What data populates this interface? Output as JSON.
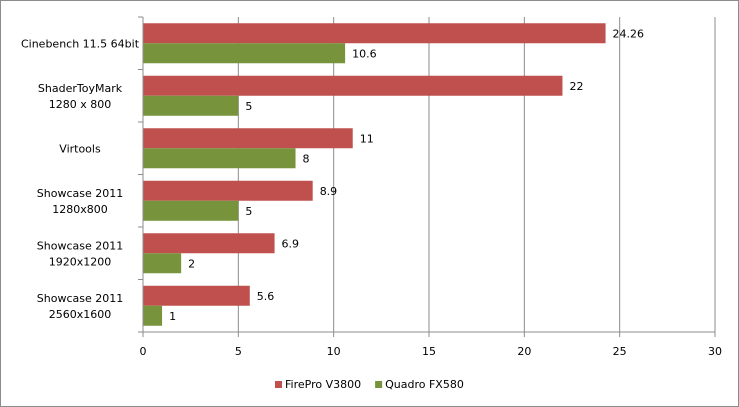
{
  "chart_data": {
    "type": "bar",
    "orientation": "horizontal",
    "categories": [
      [
        "Cinebench 11.5 64bit"
      ],
      [
        "ShaderToyMark",
        "1280 x 800"
      ],
      [
        "Virtools"
      ],
      [
        "Showcase 2011",
        "1280x800"
      ],
      [
        "Showcase 2011",
        "1920x1200"
      ],
      [
        "Showcase 2011",
        "2560x1600"
      ]
    ],
    "series": [
      {
        "name": "FirePro V3800",
        "color": "#c0504d",
        "values": [
          24.26,
          22,
          11,
          8.9,
          6.9,
          5.6
        ],
        "labels": [
          "24.26",
          "22",
          "11",
          "8.9",
          "6.9",
          "5.6"
        ]
      },
      {
        "name": "Quadro FX580",
        "color": "#77933c",
        "values": [
          10.6,
          5,
          8,
          5,
          2,
          1
        ],
        "labels": [
          "10.6",
          "5",
          "8",
          "5",
          "2",
          "1"
        ]
      }
    ],
    "x_ticks": [
      "0",
      "5",
      "10",
      "15",
      "20",
      "25",
      "30"
    ],
    "xlim": [
      0,
      30
    ],
    "grid": true,
    "legend_position": "bottom"
  }
}
